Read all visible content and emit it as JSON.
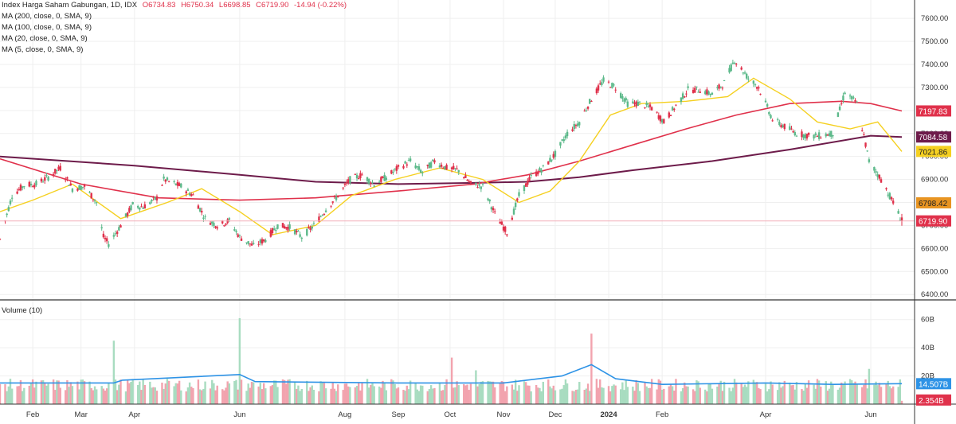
{
  "header": {
    "symbol": "Index Harga Saham Gabungan, 1D, IDX",
    "open": "O6734.83",
    "high": "H6750.34",
    "low": "L6698.85",
    "close": "C6719.90",
    "change": "-14.94 (-0.22%)"
  },
  "indicators": [
    "MA (200, close, 0, SMA, 9)",
    "MA (100, close, 0, SMA, 9)",
    "MA (20, close, 0, SMA, 9)",
    "MA (5, close, 0, SMA, 9)"
  ],
  "volume_panel": {
    "title": "Volume (10)"
  },
  "colors": {
    "up": "#5cb98a",
    "down": "#e0314b",
    "ma200": "#6d1b4a",
    "ma100": "#e0314b",
    "ma20": "#f5d020",
    "ma5": "#e89422",
    "vol_ma": "#2e93e6",
    "grid": "#efefef"
  },
  "chart_data": {
    "type": "candlestick",
    "price_axis": {
      "ticks": [
        "7600.00",
        "7500.00",
        "7400.00",
        "7300.00",
        "7200.00",
        "7100.00",
        "7000.00",
        "6900.00",
        "6800.00",
        "6700.00",
        "6600.00",
        "6500.00",
        "6400.00"
      ],
      "range": [
        6380,
        7680
      ]
    },
    "volume_axis": {
      "ticks": [
        "60B",
        "40B",
        "20B"
      ],
      "range": [
        0,
        70
      ]
    },
    "time_axis": {
      "labels": [
        {
          "label": "Feb",
          "date": "2023-02-01"
        },
        {
          "label": "Mar",
          "date": "2023-03-01"
        },
        {
          "label": "Apr",
          "date": "2023-04-01"
        },
        {
          "label": "Jun",
          "date": "2023-06-01"
        },
        {
          "label": "Aug",
          "date": "2023-08-01"
        },
        {
          "label": "Sep",
          "date": "2023-09-01"
        },
        {
          "label": "Oct",
          "date": "2023-10-01"
        },
        {
          "label": "Nov",
          "date": "2023-11-01"
        },
        {
          "label": "Dec",
          "date": "2023-12-01"
        },
        {
          "label": "2024",
          "date": "2024-01-01"
        },
        {
          "label": "Feb",
          "date": "2024-02-01"
        },
        {
          "label": "Apr",
          "date": "2024-04-01"
        },
        {
          "label": "Jun",
          "date": "2024-06-01"
        }
      ]
    },
    "close_path": [
      [
        "2023-01-13",
        6640
      ],
      [
        "2023-01-20",
        6830
      ],
      [
        "2023-01-27",
        6875
      ],
      [
        "2023-02-03",
        6880
      ],
      [
        "2023-02-10",
        6910
      ],
      [
        "2023-02-17",
        6950
      ],
      [
        "2023-02-24",
        6860
      ],
      [
        "2023-03-03",
        6870
      ],
      [
        "2023-03-10",
        6800
      ],
      [
        "2023-03-14",
        6650
      ],
      [
        "2023-03-17",
        6620
      ],
      [
        "2023-03-24",
        6700
      ],
      [
        "2023-03-31",
        6790
      ],
      [
        "2023-04-06",
        6780
      ],
      [
        "2023-04-14",
        6820
      ],
      [
        "2023-04-18",
        6900
      ],
      [
        "2023-04-28",
        6870
      ],
      [
        "2023-05-05",
        6830
      ],
      [
        "2023-05-12",
        6730
      ],
      [
        "2023-05-19",
        6700
      ],
      [
        "2023-05-26",
        6720
      ],
      [
        "2023-06-01",
        6650
      ],
      [
        "2023-06-09",
        6610
      ],
      [
        "2023-06-16",
        6640
      ],
      [
        "2023-06-23",
        6700
      ],
      [
        "2023-07-01",
        6690
      ],
      [
        "2023-07-07",
        6650
      ],
      [
        "2023-07-14",
        6700
      ],
      [
        "2023-07-21",
        6770
      ],
      [
        "2023-07-28",
        6830
      ],
      [
        "2023-08-04",
        6900
      ],
      [
        "2023-08-11",
        6920
      ],
      [
        "2023-08-18",
        6880
      ],
      [
        "2023-08-25",
        6910
      ],
      [
        "2023-09-01",
        6950
      ],
      [
        "2023-09-08",
        6980
      ],
      [
        "2023-09-15",
        6930
      ],
      [
        "2023-09-22",
        6980
      ],
      [
        "2023-09-29",
        6950
      ],
      [
        "2023-10-06",
        6940
      ],
      [
        "2023-10-13",
        6880
      ],
      [
        "2023-10-20",
        6870
      ],
      [
        "2023-10-27",
        6750
      ],
      [
        "2023-11-03",
        6670
      ],
      [
        "2023-11-10",
        6830
      ],
      [
        "2023-11-17",
        6910
      ],
      [
        "2023-11-24",
        6950
      ],
      [
        "2023-12-01",
        7010
      ],
      [
        "2023-12-08",
        7100
      ],
      [
        "2023-12-15",
        7150
      ],
      [
        "2023-12-22",
        7250
      ],
      [
        "2023-12-29",
        7330
      ],
      [
        "2024-01-05",
        7300
      ],
      [
        "2024-01-12",
        7230
      ],
      [
        "2024-01-19",
        7230
      ],
      [
        "2024-01-26",
        7210
      ],
      [
        "2024-02-02",
        7150
      ],
      [
        "2024-02-09",
        7220
      ],
      [
        "2024-02-16",
        7290
      ],
      [
        "2024-02-23",
        7290
      ],
      [
        "2024-03-01",
        7270
      ],
      [
        "2024-03-08",
        7320
      ],
      [
        "2024-03-14",
        7420
      ],
      [
        "2024-03-22",
        7340
      ],
      [
        "2024-03-28",
        7300
      ],
      [
        "2024-04-05",
        7160
      ],
      [
        "2024-04-19",
        7100
      ],
      [
        "2024-04-26",
        7090
      ],
      [
        "2024-05-03",
        7090
      ],
      [
        "2024-05-10",
        7100
      ],
      [
        "2024-05-17",
        7280
      ],
      [
        "2024-05-24",
        7230
      ],
      [
        "2024-05-31",
        6980
      ],
      [
        "2024-06-07",
        6900
      ],
      [
        "2024-06-14",
        6800
      ],
      [
        "2024-06-19",
        6720
      ]
    ],
    "ma_last_values": {
      "ma100": "7197.83",
      "ma200": "7084.58",
      "ma20": "7021.86",
      "ma5": "6798.42",
      "last_close": "6719.90"
    },
    "volume_labels": {
      "volume_ma": "14.507B",
      "last_volume": "2.354B"
    },
    "ma200_path": [
      [
        "2023-01-13",
        7000
      ],
      [
        "2023-04-01",
        6960
      ],
      [
        "2023-06-01",
        6920
      ],
      [
        "2023-07-15",
        6890
      ],
      [
        "2023-09-01",
        6880
      ],
      [
        "2023-10-15",
        6885
      ],
      [
        "2023-11-15",
        6890
      ],
      [
        "2023-12-15",
        6910
      ],
      [
        "2024-01-15",
        6940
      ],
      [
        "2024-03-01",
        6980
      ],
      [
        "2024-04-15",
        7030
      ],
      [
        "2024-06-01",
        7090
      ],
      [
        "2024-06-19",
        7084.58
      ]
    ],
    "ma100_path": [
      [
        "2023-01-13",
        6990
      ],
      [
        "2023-03-01",
        6880
      ],
      [
        "2023-04-15",
        6820
      ],
      [
        "2023-06-01",
        6810
      ],
      [
        "2023-07-15",
        6820
      ],
      [
        "2023-09-01",
        6850
      ],
      [
        "2023-10-15",
        6880
      ],
      [
        "2023-11-15",
        6920
      ],
      [
        "2023-12-15",
        6980
      ],
      [
        "2024-01-15",
        7050
      ],
      [
        "2024-02-15",
        7120
      ],
      [
        "2024-03-15",
        7180
      ],
      [
        "2024-04-15",
        7230
      ],
      [
        "2024-05-15",
        7240
      ],
      [
        "2024-06-01",
        7230
      ],
      [
        "2024-06-19",
        7197.83
      ]
    ],
    "ma20_path": [
      [
        "2023-01-13",
        6760
      ],
      [
        "2023-02-01",
        6810
      ],
      [
        "2023-02-24",
        6880
      ],
      [
        "2023-03-24",
        6730
      ],
      [
        "2023-04-20",
        6800
      ],
      [
        "2023-05-10",
        6860
      ],
      [
        "2023-06-01",
        6760
      ],
      [
        "2023-06-20",
        6660
      ],
      [
        "2023-07-15",
        6700
      ],
      [
        "2023-08-05",
        6830
      ],
      [
        "2023-08-30",
        6900
      ],
      [
        "2023-09-25",
        6950
      ],
      [
        "2023-10-20",
        6900
      ],
      [
        "2023-11-10",
        6800
      ],
      [
        "2023-11-28",
        6850
      ],
      [
        "2023-12-15",
        6980
      ],
      [
        "2024-01-02",
        7180
      ],
      [
        "2024-01-20",
        7230
      ],
      [
        "2024-02-15",
        7240
      ],
      [
        "2024-03-10",
        7260
      ],
      [
        "2024-03-25",
        7340
      ],
      [
        "2024-04-15",
        7250
      ],
      [
        "2024-05-01",
        7150
      ],
      [
        "2024-05-20",
        7120
      ],
      [
        "2024-06-05",
        7150
      ],
      [
        "2024-06-19",
        7021.86
      ]
    ],
    "volume_spikes": [
      [
        "2023-03-20",
        45
      ],
      [
        "2023-06-01",
        61
      ],
      [
        "2023-10-02",
        33
      ],
      [
        "2023-10-16",
        24
      ],
      [
        "2023-12-22",
        50
      ],
      [
        "2024-05-31",
        25
      ]
    ],
    "volume_ma_path": [
      [
        "2023-01-13",
        15
      ],
      [
        "2023-03-20",
        15
      ],
      [
        "2023-03-25",
        17
      ],
      [
        "2023-06-01",
        21
      ],
      [
        "2023-06-10",
        16
      ],
      [
        "2023-09-01",
        15
      ],
      [
        "2023-11-01",
        15
      ],
      [
        "2023-12-05",
        20
      ],
      [
        "2023-12-22",
        28
      ],
      [
        "2024-01-05",
        18
      ],
      [
        "2024-02-01",
        14
      ],
      [
        "2024-04-01",
        15
      ],
      [
        "2024-05-10",
        14
      ],
      [
        "2024-06-19",
        14.5
      ]
    ]
  }
}
